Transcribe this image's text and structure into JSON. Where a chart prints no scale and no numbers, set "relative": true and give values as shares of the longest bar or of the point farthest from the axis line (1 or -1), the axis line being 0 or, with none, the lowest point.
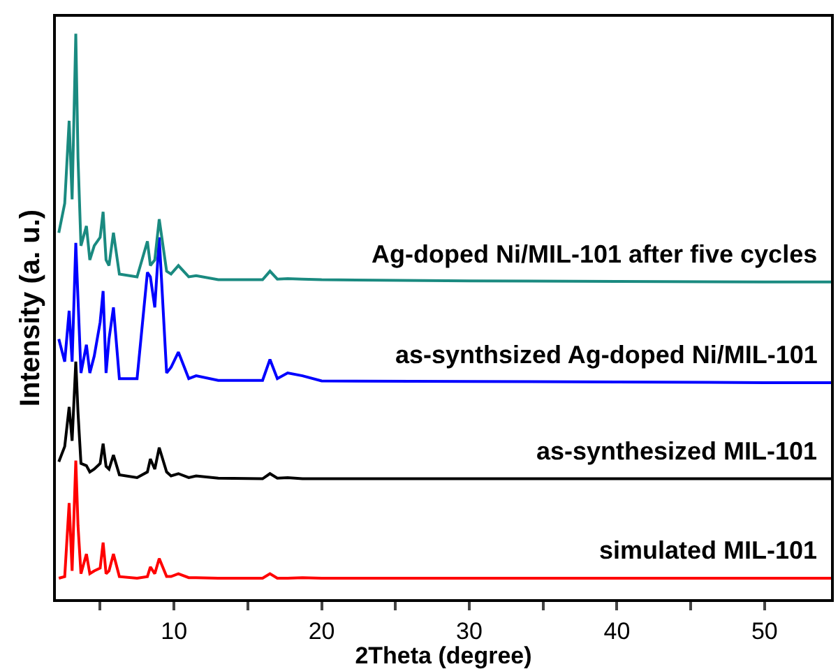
{
  "chart_data": {
    "type": "line",
    "relative": true,
    "xlabel": "2Theta (degree)",
    "ylabel": "Intensity (a. u.)",
    "x": [
      2.2,
      2.6,
      2.9,
      3.1,
      3.35,
      3.5,
      3.7,
      4.07,
      4.3,
      4.6,
      5.0,
      5.2,
      5.4,
      5.6,
      5.9,
      6.3,
      7.5,
      8.2,
      8.4,
      8.7,
      9.0,
      9.5,
      9.8,
      10.3,
      11.0,
      11.5,
      13,
      16.0,
      16.5,
      17.0,
      17.7,
      18.7,
      20,
      30,
      40,
      50,
      54.5
    ],
    "xlim": [
      2,
      54.5
    ],
    "xticks": [
      {
        "value": 5,
        "label": null
      },
      10,
      {
        "value": 15,
        "label": null
      },
      20,
      {
        "value": 25,
        "label": null
      },
      30,
      {
        "value": 35,
        "label": null
      },
      40,
      {
        "value": 45,
        "label": null
      },
      50
    ],
    "series": [
      {
        "name": "simulated MIL-101",
        "color": "#ff0000",
        "values": [
          0.037,
          0.04,
          0.17,
          0.05,
          0.245,
          0.13,
          0.045,
          0.08,
          0.045,
          0.05,
          0.055,
          0.1,
          0.045,
          0.05,
          0.08,
          0.04,
          0.037,
          0.04,
          0.057,
          0.045,
          0.072,
          0.04,
          0.04,
          0.045,
          0.038,
          0.038,
          0.037,
          0.037,
          0.045,
          0.037,
          0.037,
          0.038,
          0.037,
          0.037,
          0.037,
          0.037,
          0.037
        ]
      },
      {
        "name": "as-synthesized MIL-101",
        "color": "#000000",
        "values": [
          0.243,
          0.27,
          0.34,
          0.28,
          0.42,
          0.33,
          0.24,
          0.236,
          0.225,
          0.23,
          0.24,
          0.275,
          0.235,
          0.23,
          0.255,
          0.22,
          0.215,
          0.225,
          0.248,
          0.23,
          0.268,
          0.225,
          0.218,
          0.222,
          0.215,
          0.218,
          0.214,
          0.213,
          0.222,
          0.214,
          0.215,
          0.213,
          0.213,
          0.213,
          0.213,
          0.213,
          0.213
        ]
      },
      {
        "name": "as-synthsized Ag-doped Ni/MIL-101",
        "color": "#0000ff",
        "values": [
          0.46,
          0.42,
          0.51,
          0.42,
          0.63,
          0.53,
          0.4,
          0.45,
          0.4,
          0.43,
          0.49,
          0.545,
          0.4,
          0.46,
          0.516,
          0.39,
          0.39,
          0.578,
          0.57,
          0.516,
          0.64,
          0.4,
          0.41,
          0.437,
          0.39,
          0.395,
          0.387,
          0.387,
          0.424,
          0.39,
          0.4,
          0.395,
          0.386,
          0.385,
          0.384,
          0.383,
          0.383
        ]
      },
      {
        "name": "Ag-doped Ni/MIL-101 after five cycles",
        "color": "#1a8a80",
        "values": [
          0.648,
          0.7,
          0.846,
          0.707,
          1.0,
          0.78,
          0.625,
          0.66,
          0.6,
          0.625,
          0.64,
          0.685,
          0.6,
          0.59,
          0.648,
          0.575,
          0.57,
          0.633,
          0.59,
          0.6,
          0.672,
          0.58,
          0.575,
          0.59,
          0.57,
          0.572,
          0.565,
          0.565,
          0.58,
          0.566,
          0.567,
          0.566,
          0.565,
          0.563,
          0.562,
          0.561,
          0.561
        ]
      }
    ],
    "legend": false,
    "marker": "none",
    "line_style": "solid"
  }
}
